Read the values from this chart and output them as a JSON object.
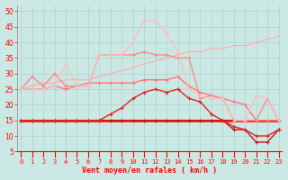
{
  "x": [
    0,
    1,
    2,
    3,
    4,
    5,
    6,
    7,
    8,
    9,
    10,
    11,
    12,
    13,
    14,
    15,
    16,
    17,
    18,
    19,
    20,
    21,
    22,
    23
  ],
  "background_color": "#cce8e4",
  "grid_color": "#aad4cc",
  "xlabel": "Vent moyen/en rafales ( km/h )",
  "ylim": [
    5,
    52
  ],
  "yticks": [
    5,
    10,
    15,
    20,
    25,
    30,
    35,
    40,
    45,
    50
  ],
  "xlim": [
    -0.3,
    23.3
  ],
  "series": [
    {
      "name": "flat_red1",
      "color": "#dd0000",
      "linewidth": 1.8,
      "marker": null,
      "markersize": 0,
      "values": [
        15,
        15,
        15,
        15,
        15,
        15,
        15,
        15,
        15,
        15,
        15,
        15,
        15,
        15,
        15,
        15,
        15,
        15,
        15,
        15,
        15,
        15,
        15,
        15
      ]
    },
    {
      "name": "flat_darkred",
      "color": "#aa0000",
      "linewidth": 1.3,
      "marker": null,
      "markersize": 0,
      "values": [
        15,
        15,
        15,
        15,
        15,
        15,
        15,
        15,
        15,
        15,
        15,
        15,
        15,
        15,
        15,
        15,
        15,
        15,
        15,
        15,
        15,
        15,
        15,
        15
      ]
    },
    {
      "name": "flat_red2",
      "color": "#ff2222",
      "linewidth": 1.0,
      "marker": null,
      "markersize": 0,
      "values": [
        15,
        15,
        15,
        15,
        15,
        15,
        15,
        15,
        15,
        15,
        15,
        15,
        15,
        15,
        15,
        15,
        15,
        15,
        15,
        15,
        15,
        15,
        15,
        15
      ]
    },
    {
      "name": "medium_dark",
      "color": "#cc1111",
      "linewidth": 1.0,
      "marker": "+",
      "markersize": 3.5,
      "values": [
        15,
        15,
        15,
        15,
        15,
        15,
        15,
        15,
        15,
        15,
        15,
        15,
        15,
        15,
        15,
        15,
        15,
        15,
        15,
        12,
        12,
        8,
        8,
        12
      ]
    },
    {
      "name": "medium_red",
      "color": "#dd2222",
      "linewidth": 1.0,
      "marker": "+",
      "markersize": 3.5,
      "values": [
        15,
        15,
        15,
        15,
        15,
        15,
        15,
        15,
        17,
        19,
        22,
        24,
        25,
        24,
        25,
        22,
        21,
        17,
        15,
        13,
        12,
        10,
        10,
        12
      ]
    },
    {
      "name": "pink_upper",
      "color": "#ff7777",
      "linewidth": 1.0,
      "marker": "+",
      "markersize": 3.5,
      "values": [
        25,
        25,
        25,
        26,
        25,
        26,
        27,
        27,
        27,
        27,
        27,
        28,
        28,
        28,
        29,
        26,
        24,
        23,
        22,
        21,
        20,
        15,
        15,
        15
      ]
    },
    {
      "name": "lighter_pink_diagonal",
      "color": "#ffaaaa",
      "linewidth": 0.8,
      "marker": null,
      "markersize": 0,
      "values": [
        25,
        26,
        27,
        27,
        28,
        28,
        28,
        29,
        30,
        31,
        32,
        33,
        34,
        35,
        36,
        37,
        37,
        38,
        38,
        39,
        39,
        40,
        41,
        42
      ]
    },
    {
      "name": "medium_pink_markers",
      "color": "#ff8888",
      "linewidth": 1.0,
      "marker": "+",
      "markersize": 3.5,
      "values": [
        25,
        29,
        26,
        30,
        26,
        26,
        26,
        36,
        36,
        36,
        36,
        37,
        36,
        36,
        35,
        35,
        22,
        23,
        22,
        15,
        15,
        15,
        22,
        15
      ]
    },
    {
      "name": "light_pink_high",
      "color": "#ffbbbb",
      "linewidth": 0.9,
      "marker": "+",
      "markersize": 3.5,
      "values": [
        25,
        25,
        25,
        26,
        33,
        26,
        26,
        36,
        36,
        36,
        40,
        47,
        47,
        43,
        37,
        25,
        23,
        22,
        22,
        15,
        15,
        23,
        22,
        15
      ]
    }
  ]
}
